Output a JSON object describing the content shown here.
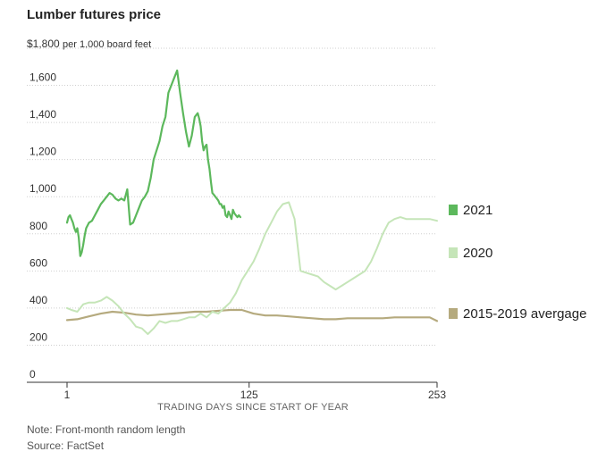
{
  "title": "Lumber futures price",
  "unit_value": "$1,800",
  "unit_text": "per 1,000 board feet",
  "note": "Note: Front-month random length",
  "source": "Source: FactSet",
  "chart_data": {
    "type": "line",
    "title": "Lumber futures price",
    "ylabel": "per 1,000 board feet",
    "xlabel": "TRADING DAYS SINCE START OF YEAR",
    "ylim": [
      0,
      1800
    ],
    "xlim": [
      1,
      253
    ],
    "yticks": [
      0,
      200,
      400,
      600,
      800,
      1000,
      1200,
      1400,
      1600
    ],
    "ytick_labels": [
      "0",
      "200",
      "400",
      "600",
      "800",
      "1,000",
      "1,200",
      "1,400",
      "1,600"
    ],
    "xticks": [
      1,
      125,
      253
    ],
    "xtick_labels": [
      "1",
      "125",
      "253"
    ],
    "grid": true,
    "colors": {
      "2021": "#5cb85c",
      "2020": "#c5e5b8",
      "avg": "#b5aa7e"
    },
    "series": [
      {
        "name": "2021",
        "legend": "2021",
        "x": [
          1,
          2,
          3,
          4,
          5,
          6,
          7,
          8,
          9,
          10,
          11,
          12,
          13,
          14,
          16,
          18,
          20,
          22,
          24,
          26,
          28,
          30,
          32,
          34,
          36,
          38,
          40,
          42,
          44,
          46,
          48,
          50,
          52,
          54,
          56,
          58,
          60,
          62,
          64,
          66,
          68,
          70,
          72,
          74,
          76,
          78,
          80,
          82,
          84,
          86,
          88,
          90,
          91,
          92,
          93,
          94,
          95,
          96,
          97,
          98,
          99,
          100,
          101,
          102,
          103,
          104,
          105,
          106,
          107,
          108,
          109,
          110,
          111,
          112,
          113,
          114,
          115,
          116,
          117,
          118,
          119
        ],
        "y": [
          860,
          890,
          900,
          880,
          860,
          830,
          810,
          830,
          780,
          680,
          700,
          740,
          790,
          830,
          860,
          870,
          900,
          930,
          960,
          980,
          1000,
          1020,
          1010,
          990,
          980,
          990,
          980,
          1040,
          850,
          860,
          900,
          940,
          980,
          1000,
          1030,
          1100,
          1200,
          1250,
          1300,
          1380,
          1430,
          1560,
          1600,
          1640,
          1680,
          1560,
          1450,
          1350,
          1270,
          1330,
          1430,
          1450,
          1420,
          1380,
          1300,
          1250,
          1270,
          1280,
          1200,
          1150,
          1080,
          1020,
          1010,
          1000,
          990,
          980,
          960,
          960,
          940,
          950,
          900,
          890,
          920,
          900,
          880,
          930,
          910,
          900,
          890,
          900,
          890
        ]
      },
      {
        "name": "2020",
        "legend": "2020",
        "x": [
          1,
          4,
          8,
          12,
          16,
          20,
          24,
          28,
          32,
          36,
          40,
          44,
          48,
          52,
          56,
          60,
          64,
          68,
          72,
          76,
          80,
          84,
          88,
          92,
          96,
          100,
          104,
          108,
          112,
          116,
          120,
          124,
          128,
          132,
          136,
          140,
          144,
          148,
          152,
          156,
          160,
          164,
          168,
          172,
          176,
          180,
          184,
          188,
          192,
          196,
          200,
          204,
          208,
          212,
          216,
          220,
          224,
          228,
          232,
          236,
          240,
          244,
          248,
          253
        ],
        "y": [
          400,
          390,
          380,
          420,
          430,
          430,
          440,
          460,
          440,
          410,
          370,
          340,
          300,
          290,
          260,
          290,
          330,
          320,
          330,
          330,
          340,
          350,
          350,
          370,
          350,
          380,
          370,
          400,
          430,
          480,
          550,
          600,
          650,
          720,
          800,
          860,
          920,
          960,
          970,
          880,
          600,
          590,
          580,
          570,
          540,
          520,
          500,
          520,
          540,
          560,
          580,
          600,
          650,
          720,
          800,
          860,
          880,
          890,
          880,
          880,
          880,
          880,
          880,
          870
        ]
      },
      {
        "name": "2015-2019 avergage",
        "legend": "2015-2019 avergage",
        "x": [
          1,
          8,
          16,
          24,
          32,
          40,
          48,
          56,
          64,
          72,
          80,
          88,
          96,
          104,
          112,
          120,
          128,
          136,
          144,
          152,
          160,
          168,
          176,
          184,
          192,
          200,
          208,
          216,
          224,
          232,
          240,
          248,
          253
        ],
        "y": [
          335,
          340,
          355,
          370,
          380,
          375,
          365,
          360,
          365,
          370,
          375,
          380,
          380,
          385,
          390,
          390,
          370,
          360,
          360,
          355,
          350,
          345,
          340,
          340,
          345,
          345,
          345,
          345,
          350,
          350,
          350,
          350,
          330
        ]
      }
    ]
  }
}
